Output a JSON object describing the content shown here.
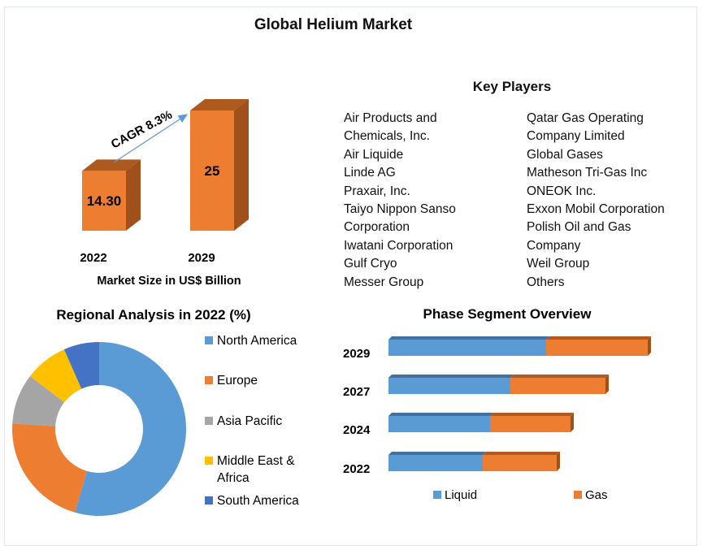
{
  "title": "Global Helium Market",
  "market_size": {
    "xlabel": "Market Size in US$ Billion",
    "cagr_label": "CAGR 8.3%"
  },
  "key_players": {
    "title": "Key Players",
    "left": [
      "Air Products and",
      "Chemicals, Inc.",
      "Air Liquide",
      "Linde AG",
      "Praxair, Inc.",
      "Taiyo Nippon Sanso",
      "Corporation",
      "Iwatani Corporation",
      "Gulf Cryo",
      "Messer Group"
    ],
    "right": [
      "Qatar Gas Operating",
      "Company Limited",
      "Global Gases",
      "Matheson Tri-Gas Inc",
      "ONEOK Inc.",
      "Exxon Mobil Corporation",
      "Polish Oil and Gas",
      "Company",
      "Weil Group",
      "Others"
    ]
  },
  "chart_data": [
    {
      "type": "bar",
      "categories": [
        "2022",
        "2029"
      ],
      "values": [
        14.3,
        25
      ],
      "data_labels": [
        "14.30",
        "25"
      ],
      "xlabel": "Market Size in US$ Billion",
      "annotation": "CAGR 8.3%",
      "colors": {
        "bar": "#ed7d31"
      }
    },
    {
      "type": "pie",
      "title": "Regional Analysis in 2022 (%)",
      "categories": [
        "North America",
        "Europe",
        "Asia Pacific",
        "Middle East & Africa",
        "South America"
      ],
      "values": [
        54.5,
        21.5,
        9.4,
        8.0,
        6.6
      ],
      "colors": [
        "#5b9bd5",
        "#ed7d31",
        "#a5a5a5",
        "#ffc000",
        "#4472c4"
      ],
      "legend": "right",
      "donut": true
    },
    {
      "type": "bar",
      "orientation": "horizontal",
      "stacked": true,
      "title": "Phase Segment Overview",
      "categories": [
        "2029",
        "2027",
        "2024",
        "2022"
      ],
      "series": [
        {
          "name": "Liquid",
          "values": [
            194,
            150,
            125,
            116
          ],
          "color": "#5b9bd5"
        },
        {
          "name": "Gas",
          "values": [
            125,
            117,
            99,
            91
          ],
          "color": "#ed7d31"
        }
      ],
      "legend": "bottom"
    }
  ]
}
